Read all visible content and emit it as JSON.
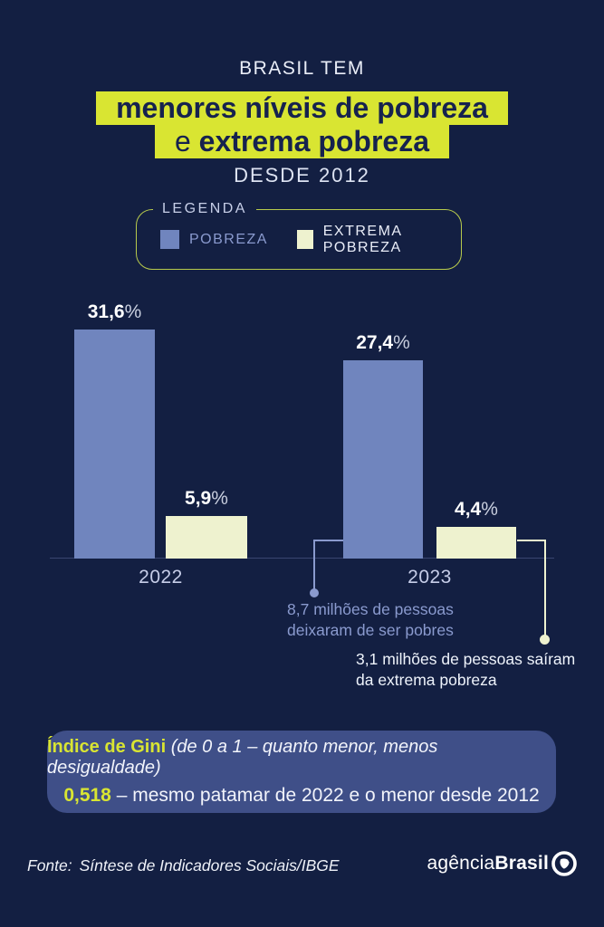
{
  "page": {
    "bg": "#131f42",
    "accent_yellow": "#d9e532",
    "bar_blue": "#7085be",
    "bar_cream": "#eef2cf"
  },
  "header": {
    "kicker": "BRASIL TEM",
    "highlight_line1": "menores níveis de pobreza",
    "highlight_line2_prefix": "e ",
    "highlight_line2_bold": "extrema pobreza",
    "subtitle": "DESDE 2012"
  },
  "legend": {
    "title": "LEGENDA",
    "items": [
      {
        "label": "POBREZA",
        "color": "#7085be"
      },
      {
        "label": "EXTREMA POBREZA",
        "color": "#eef2cf"
      }
    ]
  },
  "chart_data": {
    "type": "bar",
    "categories": [
      "2022",
      "2023"
    ],
    "series": [
      {
        "name": "POBREZA",
        "color": "#7085be",
        "values": [
          31.6,
          27.4
        ],
        "labels": [
          "31,6%",
          "27,4%"
        ]
      },
      {
        "name": "EXTREMA POBREZA",
        "color": "#eef2cf",
        "values": [
          5.9,
          4.4
        ],
        "labels": [
          "5,9%",
          "4,4%"
        ]
      }
    ],
    "unit": "%",
    "ylim": [
      0,
      32
    ],
    "grid": false,
    "legend_position": "top",
    "annotations": [
      {
        "target": "2023 POBREZA",
        "text": "8,7 milhões de pessoas deixaram de ser pobres"
      },
      {
        "target": "2023 EXTREMA POBREZA",
        "text": "3,1 milhões de pessoas saíram da extrema pobreza"
      }
    ]
  },
  "value_labels": {
    "g0s0": "31,6",
    "g0s1": "5,9",
    "g1s0": "27,4",
    "g1s1": "4,4",
    "pct": "%"
  },
  "annotations": {
    "left_line1": "8,7 milhões de pessoas",
    "left_line2": "deixaram de ser pobres",
    "right_line1": "3,1 milhões de pessoas saíram",
    "right_line2": "da extrema pobreza"
  },
  "gini": {
    "label": "Índice de Gini",
    "scale_note": " (de 0 a 1 – quanto menor, menos desigualdade)",
    "value": "0,518",
    "value_note": " – mesmo patamar de 2022 e o menor desde 2012"
  },
  "footer": {
    "source_label": "Fonte:",
    "source": "Síntese de Indicadores Sociais/IBGE",
    "logo_regular": "agência",
    "logo_bold": "Brasil"
  }
}
